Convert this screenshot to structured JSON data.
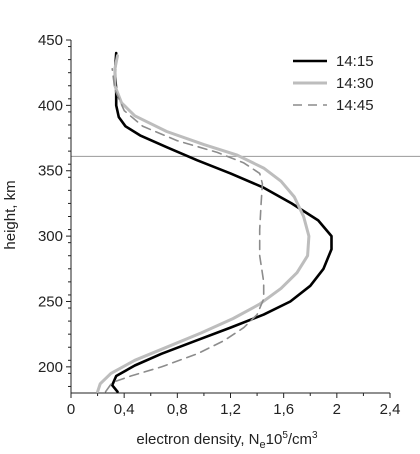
{
  "chart_data": {
    "type": "line",
    "xlabel": "electron density, N",
    "xlabel_sub": "e",
    "xlabel_tail": "10",
    "xlabel_sup1": "5",
    "xlabel_unit": "/cm",
    "xlabel_sup2": "3",
    "ylabel": "height, km",
    "xlim": [
      0,
      2.4
    ],
    "ylim": [
      180,
      450
    ],
    "xticks": [
      0,
      0.4,
      0.8,
      1.2,
      1.6,
      2,
      2.4
    ],
    "xtick_labels": [
      "0",
      "0,4",
      "0,8",
      "1,2",
      "1,6",
      "2",
      "2,4"
    ],
    "yticks": [
      200,
      250,
      300,
      350,
      400,
      450
    ],
    "ytick_labels": [
      "200",
      "250",
      "300",
      "350",
      "400",
      "450"
    ],
    "reference_line_y": 361,
    "grid": false,
    "legend_position": "top-right",
    "series": [
      {
        "name": "14:15",
        "color": "#000000",
        "style": "solid",
        "points": [
          [
            0.35,
            181
          ],
          [
            0.31,
            186
          ],
          [
            0.34,
            193
          ],
          [
            0.48,
            201
          ],
          [
            0.68,
            210
          ],
          [
            0.94,
            220
          ],
          [
            1.2,
            230
          ],
          [
            1.45,
            240
          ],
          [
            1.65,
            250
          ],
          [
            1.8,
            262
          ],
          [
            1.9,
            275
          ],
          [
            1.96,
            290
          ],
          [
            1.96,
            300
          ],
          [
            1.86,
            312
          ],
          [
            1.66,
            325
          ],
          [
            1.45,
            337
          ],
          [
            1.2,
            348
          ],
          [
            0.95,
            358
          ],
          [
            0.72,
            368
          ],
          [
            0.52,
            377
          ],
          [
            0.41,
            384
          ],
          [
            0.36,
            391
          ],
          [
            0.34,
            400
          ],
          [
            0.34,
            412
          ],
          [
            0.33,
            425
          ],
          [
            0.34,
            440
          ]
        ]
      },
      {
        "name": "14:30",
        "color": "#bdbdbd",
        "style": "solid",
        "points": [
          [
            0.2,
            181
          ],
          [
            0.22,
            187
          ],
          [
            0.3,
            195
          ],
          [
            0.48,
            205
          ],
          [
            0.72,
            215
          ],
          [
            0.98,
            226
          ],
          [
            1.22,
            237
          ],
          [
            1.42,
            248
          ],
          [
            1.58,
            260
          ],
          [
            1.7,
            272
          ],
          [
            1.78,
            285
          ],
          [
            1.79,
            300
          ],
          [
            1.75,
            315
          ],
          [
            1.68,
            330
          ],
          [
            1.58,
            342
          ],
          [
            1.45,
            352
          ],
          [
            1.25,
            362
          ],
          [
            1.0,
            370
          ],
          [
            0.72,
            380
          ],
          [
            0.48,
            392
          ],
          [
            0.38,
            402
          ],
          [
            0.33,
            415
          ],
          [
            0.33,
            428
          ],
          [
            0.35,
            438
          ]
        ]
      },
      {
        "name": "14:45",
        "color": "#8c8c8c",
        "style": "dashed",
        "points": [
          [
            0.26,
            181
          ],
          [
            0.31,
            188
          ],
          [
            0.45,
            193
          ],
          [
            0.68,
            200
          ],
          [
            0.95,
            210
          ],
          [
            1.15,
            220
          ],
          [
            1.3,
            230
          ],
          [
            1.4,
            240
          ],
          [
            1.45,
            252
          ],
          [
            1.45,
            265
          ],
          [
            1.42,
            285
          ],
          [
            1.42,
            305
          ],
          [
            1.43,
            325
          ],
          [
            1.44,
            340
          ],
          [
            1.42,
            348
          ],
          [
            1.3,
            356
          ],
          [
            1.1,
            364
          ],
          [
            0.8,
            373
          ],
          [
            0.54,
            384
          ],
          [
            0.4,
            396
          ],
          [
            0.33,
            412
          ],
          [
            0.31,
            428
          ]
        ]
      }
    ]
  }
}
